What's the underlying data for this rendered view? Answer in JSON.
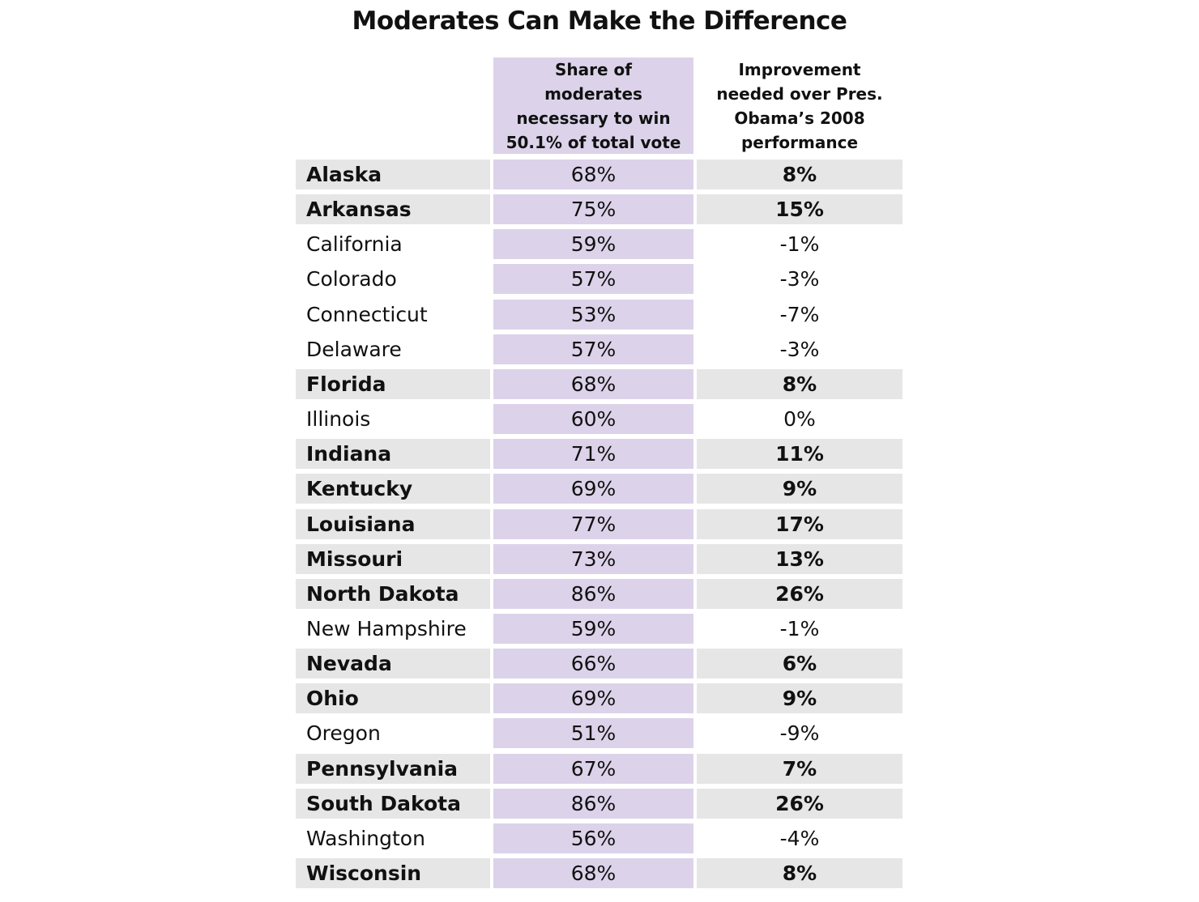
{
  "title": "Moderates Can Make the Difference",
  "table": {
    "headers": [
      "Share of moderates necessary to win 50.1% of total vote",
      "Improvement needed over Pres. Obama’s 2008 performance"
    ],
    "rows": [
      {
        "state": "Alaska",
        "share": "68%",
        "improvement": "8%",
        "highlighted": true
      },
      {
        "state": "Arkansas",
        "share": "75%",
        "improvement": "15%",
        "highlighted": true
      },
      {
        "state": "California",
        "share": "59%",
        "improvement": "-1%",
        "highlighted": false
      },
      {
        "state": "Colorado",
        "share": "57%",
        "improvement": "-3%",
        "highlighted": false
      },
      {
        "state": "Connecticut",
        "share": "53%",
        "improvement": "-7%",
        "highlighted": false
      },
      {
        "state": "Delaware",
        "share": "57%",
        "improvement": "-3%",
        "highlighted": false
      },
      {
        "state": "Florida",
        "share": "68%",
        "improvement": "8%",
        "highlighted": true
      },
      {
        "state": "Illinois",
        "share": "60%",
        "improvement": "0%",
        "highlighted": false
      },
      {
        "state": "Indiana",
        "share": "71%",
        "improvement": "11%",
        "highlighted": true
      },
      {
        "state": "Kentucky",
        "share": "69%",
        "improvement": "9%",
        "highlighted": true
      },
      {
        "state": "Louisiana",
        "share": "77%",
        "improvement": "17%",
        "highlighted": true
      },
      {
        "state": "Missouri",
        "share": "73%",
        "improvement": "13%",
        "highlighted": true
      },
      {
        "state": "North Dakota",
        "share": "86%",
        "improvement": "26%",
        "highlighted": true
      },
      {
        "state": "New Hampshire",
        "share": "59%",
        "improvement": "-1%",
        "highlighted": false
      },
      {
        "state": "Nevada",
        "share": "66%",
        "improvement": "6%",
        "highlighted": true
      },
      {
        "state": "Ohio",
        "share": "69%",
        "improvement": "9%",
        "highlighted": true
      },
      {
        "state": "Oregon",
        "share": "51%",
        "improvement": "-9%",
        "highlighted": false
      },
      {
        "state": "Pennsylvania",
        "share": "67%",
        "improvement": "7%",
        "highlighted": true
      },
      {
        "state": "South Dakota",
        "share": "86%",
        "improvement": "26%",
        "highlighted": true
      },
      {
        "state": "Washington",
        "share": "56%",
        "improvement": "-4%",
        "highlighted": false
      },
      {
        "state": "Wisconsin",
        "share": "68%",
        "improvement": "8%",
        "highlighted": true
      }
    ]
  }
}
